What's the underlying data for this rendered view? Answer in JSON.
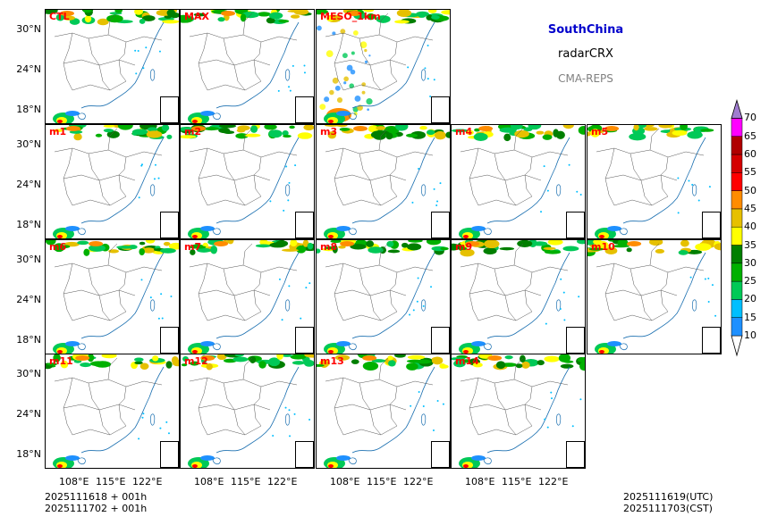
{
  "title": {
    "region": "SouthChina",
    "product": "radarCRX",
    "system": "CMA-REPS",
    "region_color": "#0000cc",
    "product_color": "#000000",
    "system_color": "#808080"
  },
  "panels": [
    {
      "label": "CTL"
    },
    {
      "label": "MAX"
    },
    {
      "label": "MESO_1km"
    },
    {
      "label": "m1"
    },
    {
      "label": "m2"
    },
    {
      "label": "m3"
    },
    {
      "label": "m4"
    },
    {
      "label": "m5"
    },
    {
      "label": "m6"
    },
    {
      "label": "m7"
    },
    {
      "label": "m8"
    },
    {
      "label": "m9"
    },
    {
      "label": "m10"
    },
    {
      "label": "m11"
    },
    {
      "label": "m12"
    },
    {
      "label": "m13"
    },
    {
      "label": "m14"
    }
  ],
  "axes": {
    "lat_labels": [
      "30°N",
      "24°N",
      "18°N"
    ],
    "lon_labels": [
      "108°E",
      "115°E",
      "122°E"
    ]
  },
  "colorbar": {
    "levels": [
      "10",
      "15",
      "20",
      "25",
      "30",
      "35",
      "40",
      "45",
      "50",
      "55",
      "60",
      "65",
      "70"
    ],
    "colors": [
      "#1e90ff",
      "#00bfff",
      "#00c957",
      "#00b000",
      "#007f00",
      "#ffff00",
      "#e6c000",
      "#ff8c00",
      "#ff0000",
      "#d40000",
      "#b00000",
      "#ff00ff",
      "#9932cc",
      "#a07cd0"
    ]
  },
  "footer": {
    "init_utc": "2025111618  +  001h",
    "init_cst": "2025111702  +  001h",
    "valid_utc": "2025111619(UTC)",
    "valid_cst": "2025111703(CST)"
  }
}
